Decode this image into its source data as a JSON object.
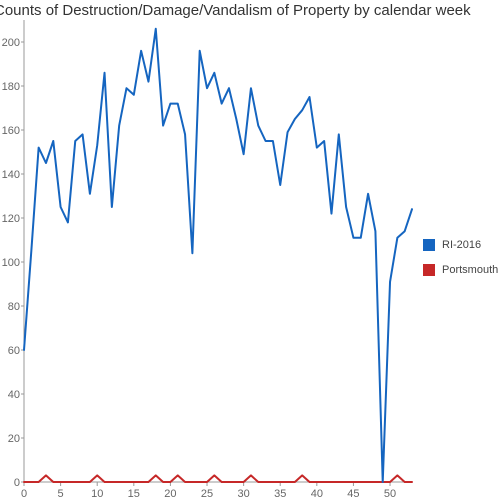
{
  "chart_data": {
    "type": "line",
    "title": "Counts of Destruction/Damage/Vandalism of Property by calendar week",
    "xlabel": "",
    "ylabel": "",
    "xlim": [
      0,
      53
    ],
    "ylim": [
      0,
      210
    ],
    "x_ticks": [
      "0",
      "5",
      "10",
      "15",
      "20",
      "25",
      "30",
      "35",
      "40",
      "45",
      "50"
    ],
    "y_ticks": [
      "0",
      "20",
      "40",
      "60",
      "80",
      "100",
      "120",
      "140",
      "160",
      "180",
      "200"
    ],
    "grid": false,
    "legend_position": "right",
    "x": [
      0,
      1,
      2,
      3,
      4,
      5,
      6,
      7,
      8,
      9,
      10,
      11,
      12,
      13,
      14,
      15,
      16,
      17,
      18,
      19,
      20,
      21,
      22,
      23,
      24,
      25,
      26,
      27,
      28,
      29,
      30,
      31,
      32,
      33,
      34,
      35,
      36,
      37,
      38,
      39,
      40,
      41,
      42,
      43,
      44,
      45,
      46,
      47,
      48,
      49,
      50,
      51,
      52,
      53
    ],
    "series": [
      {
        "name": "RI-2016",
        "color": "#1565c0",
        "values": [
          60,
          105,
          152,
          145,
          155,
          125,
          118,
          155,
          158,
          131,
          153,
          186,
          125,
          162,
          179,
          176,
          196,
          182,
          206,
          162,
          172,
          172,
          158,
          104,
          196,
          179,
          186,
          172,
          179,
          165,
          149,
          179,
          162,
          155,
          155,
          135,
          159,
          165,
          169,
          175,
          152,
          155,
          122,
          158,
          125,
          111,
          111,
          131,
          114,
          0,
          91,
          111,
          114,
          124
        ]
      },
      {
        "name": "Portsmouth",
        "color": "#c62828",
        "values": [
          0,
          0,
          0,
          3,
          0,
          0,
          0,
          0,
          0,
          0,
          3,
          0,
          0,
          0,
          0,
          0,
          0,
          0,
          3,
          0,
          0,
          3,
          0,
          0,
          0,
          0,
          3,
          0,
          0,
          0,
          0,
          3,
          0,
          0,
          0,
          0,
          0,
          0,
          3,
          0,
          0,
          0,
          0,
          0,
          0,
          0,
          0,
          0,
          0,
          0,
          0,
          3,
          0,
          0
        ]
      }
    ]
  }
}
